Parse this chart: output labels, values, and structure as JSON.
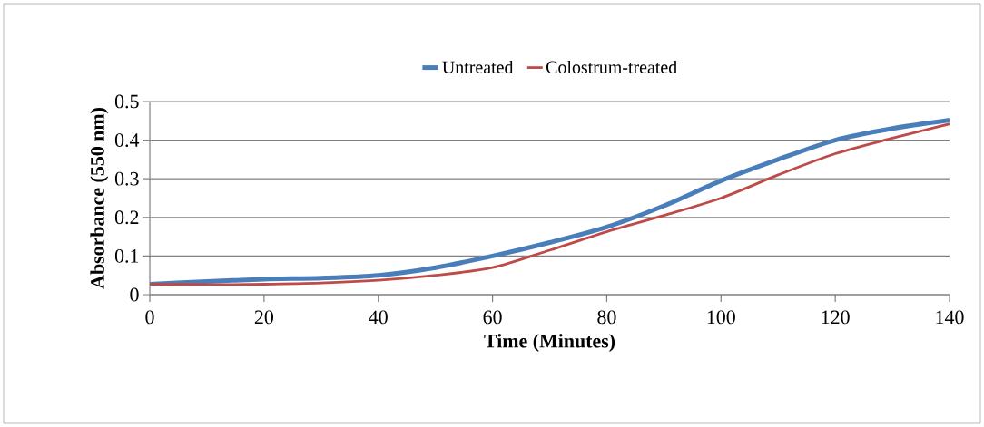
{
  "chart_data": {
    "type": "line",
    "xlabel": "Time (Minutes)",
    "ylabel": "Absorbance (550 nm)",
    "x": [
      0,
      10,
      20,
      30,
      40,
      50,
      60,
      70,
      80,
      90,
      100,
      110,
      120,
      130,
      140
    ],
    "series": [
      {
        "name": "Untreated",
        "color": "#4a7ebb",
        "values": [
          0.027,
          0.034,
          0.04,
          0.043,
          0.05,
          0.07,
          0.1,
          0.135,
          0.175,
          0.23,
          0.295,
          0.35,
          0.4,
          0.43,
          0.452
        ]
      },
      {
        "name": "Colostrum-treated",
        "color": "#be4b48",
        "values": [
          0.027,
          0.026,
          0.027,
          0.03,
          0.037,
          0.05,
          0.07,
          0.115,
          0.163,
          0.205,
          0.25,
          0.31,
          0.365,
          0.405,
          0.442
        ]
      }
    ],
    "xlim": [
      0,
      140
    ],
    "xticks": [
      0,
      20,
      40,
      60,
      80,
      100,
      120,
      140
    ],
    "ylim": [
      0,
      0.5
    ],
    "yticks": [
      0,
      0.1,
      0.2,
      0.3,
      0.4,
      0.5
    ],
    "grid": "y",
    "legend": "top",
    "marker": "none",
    "line_style": "solid"
  }
}
